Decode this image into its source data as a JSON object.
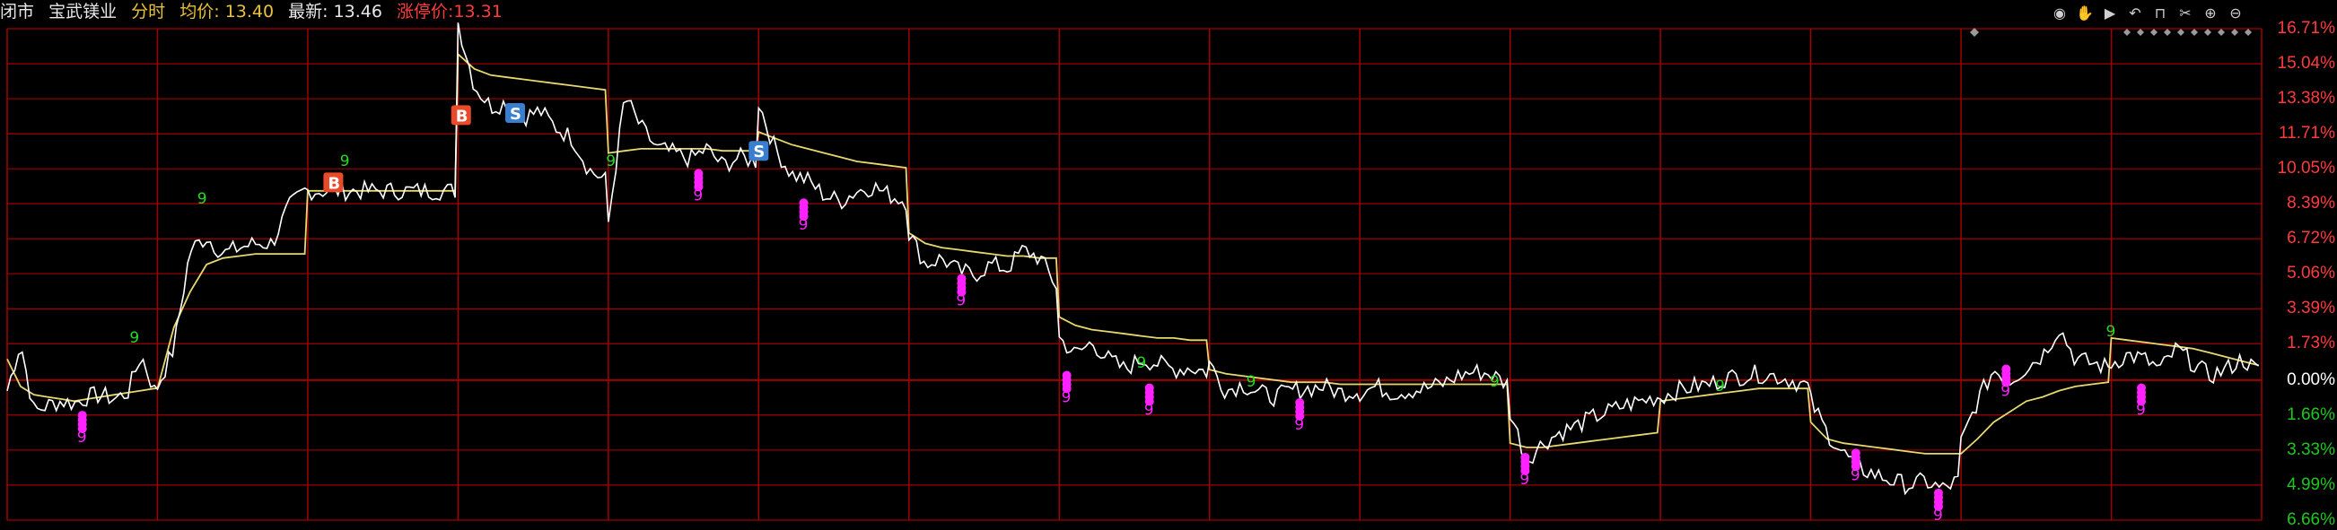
{
  "header": {
    "status": "闭市",
    "stock_name": "宝武镁业",
    "mode": "分时",
    "avg_label": "均价:",
    "avg_value": "13.40",
    "last_label": "最新:",
    "last_value": "13.46",
    "limit_label": "涨停价:",
    "limit_value": "13.31"
  },
  "toolbar": {
    "icons": [
      "eye-icon",
      "hand-icon",
      "play-icon",
      "undo-icon",
      "lock-icon",
      "scissors-icon",
      "zoom-in-icon",
      "zoom-out-icon"
    ]
  },
  "colors": {
    "background": "#000000",
    "grid": "#a00000",
    "price_line": "#ffffff",
    "avg_line": "#e8d870",
    "up": "#ff3b3b",
    "down": "#1ec81e",
    "neutral": "#ffffff",
    "marker_magenta": "#ff22ff",
    "marker_green": "#22dd22",
    "buy_marker": "#e84a2a",
    "sell_marker": "#3a7fcf"
  },
  "chart_data": {
    "type": "line",
    "ylim": [
      -6.66,
      16.71
    ],
    "y_unit": "%",
    "baseline": 0,
    "y_ticks": [
      {
        "value": 16.71,
        "label": "16.71%"
      },
      {
        "value": 15.04,
        "label": "15.04%"
      },
      {
        "value": 13.38,
        "label": "13.38%"
      },
      {
        "value": 11.71,
        "label": "11.71%"
      },
      {
        "value": 10.05,
        "label": "10.05%"
      },
      {
        "value": 8.39,
        "label": "8.39%"
      },
      {
        "value": 6.72,
        "label": "6.72%"
      },
      {
        "value": 5.06,
        "label": "5.06%"
      },
      {
        "value": 3.39,
        "label": "3.39%"
      },
      {
        "value": 1.73,
        "label": "1.73%"
      },
      {
        "value": 0.0,
        "label": "0.00%"
      },
      {
        "value": -1.66,
        "label": "1.66%"
      },
      {
        "value": -3.33,
        "label": "3.33%"
      },
      {
        "value": -4.99,
        "label": "4.99%"
      },
      {
        "value": -6.66,
        "label": "6.66%"
      }
    ],
    "sessions": 15,
    "price_series": [
      [
        -0.5,
        1.8,
        -1.5,
        -1.2,
        -1.0,
        -1.1,
        -0.8,
        -0.7,
        -0.9,
        -0.6,
        1.2,
        -0.5
      ],
      [
        -0.3,
        1.5,
        6.2,
        6.8,
        6.0,
        6.3,
        6.5,
        6.5,
        8.2,
        9.0
      ],
      [
        9.0,
        9.0,
        9.0,
        9.0,
        9.0,
        9.0,
        9.0,
        9.0,
        9.0,
        9.0
      ],
      [
        17.0,
        14.0,
        13.0,
        13.2,
        12.5,
        12.8,
        12.0,
        11.5,
        10.0,
        9.5
      ],
      [
        7.5,
        13.5,
        12.0,
        11.0,
        10.8,
        10.5,
        11.0,
        10.2,
        10.6,
        10.4
      ],
      [
        13.2,
        11.0,
        9.8,
        9.5,
        8.8,
        8.5,
        9.0,
        9.2,
        8.8,
        8.5
      ],
      [
        7.0,
        5.5,
        5.8,
        5.2,
        5.0,
        5.5,
        5.3,
        6.2,
        5.8,
        4.5
      ],
      [
        2.0,
        1.2,
        1.8,
        1.0,
        0.5,
        1.0,
        0.8,
        0.5,
        0.6,
        0.4
      ],
      [
        0.8,
        -0.5,
        -0.2,
        -0.6,
        -0.8,
        -0.5,
        -0.4,
        -0.3,
        -0.6,
        -0.5
      ],
      [
        -0.6,
        -0.3,
        -0.6,
        -0.5,
        -0.4,
        -0.2,
        0.2,
        0.4,
        0.3,
        -0.2
      ],
      [
        -1.5,
        -3.8,
        -3.0,
        -2.5,
        -2.2,
        -1.8,
        -1.5,
        -1.2,
        -1.0,
        -0.8
      ],
      [
        -0.8,
        -0.5,
        -0.3,
        -0.2,
        0.1,
        0.2,
        0.3,
        0.2,
        0.0,
        -0.3
      ],
      [
        -1.0,
        -2.5,
        -3.5,
        -4.2,
        -4.5,
        -4.8,
        -5.0,
        -4.8,
        -5.2,
        -4.8
      ],
      [
        -3.0,
        -1.0,
        0.5,
        0.0,
        0.6,
        1.2,
        2.5,
        1.0,
        0.8,
        0.6
      ],
      [
        0.8,
        1.2,
        1.0,
        0.5,
        1.5,
        0.8,
        0.2,
        0.5,
        1.0,
        0.4
      ]
    ],
    "avg_series": [
      [
        1.0,
        -0.3,
        -0.7,
        -0.8,
        -0.9,
        -1.0,
        -0.9,
        -0.8,
        -0.7,
        -0.6,
        -0.5,
        -0.4
      ],
      [
        -0.4,
        2.5,
        4.2,
        5.5,
        5.8,
        5.9,
        6.0,
        6.0,
        6.0,
        6.0
      ],
      [
        9.0,
        9.0,
        9.0,
        9.0,
        9.0,
        9.0,
        9.0,
        9.0,
        9.0,
        9.0
      ],
      [
        15.5,
        14.8,
        14.5,
        14.4,
        14.3,
        14.2,
        14.1,
        14.0,
        13.9,
        13.8
      ],
      [
        10.8,
        10.9,
        11.0,
        11.0,
        11.0,
        11.0,
        11.0,
        10.9,
        10.9,
        10.9
      ],
      [
        11.8,
        11.5,
        11.2,
        11.0,
        10.8,
        10.6,
        10.4,
        10.3,
        10.2,
        10.1
      ],
      [
        7.0,
        6.5,
        6.3,
        6.2,
        6.1,
        6.0,
        5.9,
        5.9,
        5.8,
        5.8
      ],
      [
        3.0,
        2.6,
        2.4,
        2.3,
        2.2,
        2.1,
        2.0,
        2.0,
        1.9,
        1.9
      ],
      [
        0.5,
        0.3,
        0.2,
        0.1,
        0.0,
        -0.1,
        -0.1,
        -0.1,
        -0.2,
        -0.2
      ],
      [
        -0.2,
        -0.2,
        -0.2,
        -0.2,
        -0.2,
        -0.2,
        -0.2,
        -0.2,
        -0.2,
        -0.2
      ],
      [
        -3.0,
        -3.2,
        -3.2,
        -3.1,
        -3.0,
        -2.9,
        -2.8,
        -2.7,
        -2.6,
        -2.5
      ],
      [
        -1.0,
        -0.9,
        -0.8,
        -0.7,
        -0.6,
        -0.5,
        -0.4,
        -0.4,
        -0.4,
        -0.4
      ],
      [
        -2.0,
        -2.8,
        -3.0,
        -3.1,
        -3.2,
        -3.3,
        -3.4,
        -3.5,
        -3.5,
        -3.5
      ],
      [
        -3.5,
        -2.8,
        -2.0,
        -1.5,
        -1.0,
        -0.8,
        -0.5,
        -0.3,
        -0.2,
        -0.1
      ],
      [
        2.0,
        1.9,
        1.8,
        1.7,
        1.6,
        1.5,
        1.3,
        1.1,
        0.9,
        0.7
      ]
    ],
    "signals": [
      {
        "type": "B",
        "session": 3,
        "pos": 0.02,
        "value": 12.6
      },
      {
        "type": "B",
        "session": 2,
        "pos": 0.17,
        "value": 9.4
      },
      {
        "type": "S",
        "session": 3,
        "pos": 0.38,
        "value": 12.7
      },
      {
        "type": "S",
        "session": 5,
        "pos": 0.0,
        "value": 10.9
      }
    ],
    "nine_markers": [
      {
        "label": "9",
        "color": "green",
        "session": 0,
        "pos": 0.85,
        "value": 2.0
      },
      {
        "label": "9",
        "color": "green",
        "session": 1,
        "pos": 0.3,
        "value": 8.6
      },
      {
        "label": "9",
        "color": "green",
        "session": 2,
        "pos": 0.25,
        "value": 10.4
      },
      {
        "label": "9",
        "color": "green",
        "session": 4,
        "pos": 0.02,
        "value": 10.4
      },
      {
        "label": "9",
        "color": "green",
        "session": 7,
        "pos": 0.55,
        "value": 0.8
      },
      {
        "label": "9",
        "color": "green",
        "session": 8,
        "pos": 0.28,
        "value": -0.1
      },
      {
        "label": "9",
        "color": "green",
        "session": 9,
        "pos": 0.9,
        "value": -0.1
      },
      {
        "label": "9",
        "color": "green",
        "session": 11,
        "pos": 0.4,
        "value": -0.3
      },
      {
        "label": "9",
        "color": "green",
        "session": 14,
        "pos": 0.0,
        "value": 2.3
      },
      {
        "label": "9",
        "color": "magenta",
        "session": 0,
        "pos": 0.5,
        "value": -2.1
      },
      {
        "label": "9",
        "color": "magenta",
        "session": 4,
        "pos": 0.6,
        "value": 9.4
      },
      {
        "label": "9",
        "color": "magenta",
        "session": 5,
        "pos": 0.3,
        "value": 8.0
      },
      {
        "label": "9",
        "color": "magenta",
        "session": 6,
        "pos": 0.35,
        "value": 4.4
      },
      {
        "label": "9",
        "color": "magenta",
        "session": 7,
        "pos": 0.05,
        "value": -0.2
      },
      {
        "label": "9",
        "color": "magenta",
        "session": 7,
        "pos": 0.6,
        "value": -0.8
      },
      {
        "label": "9",
        "color": "magenta",
        "session": 8,
        "pos": 0.6,
        "value": -1.5
      },
      {
        "label": "9",
        "color": "magenta",
        "session": 10,
        "pos": 0.1,
        "value": -4.1
      },
      {
        "label": "9",
        "color": "magenta",
        "session": 12,
        "pos": 0.3,
        "value": -3.9
      },
      {
        "label": "9",
        "color": "magenta",
        "session": 12,
        "pos": 0.85,
        "value": -5.8
      },
      {
        "label": "9",
        "color": "magenta",
        "session": 13,
        "pos": 0.3,
        "value": 0.1
      },
      {
        "label": "9",
        "color": "magenta",
        "session": 14,
        "pos": 0.2,
        "value": -0.8
      }
    ]
  }
}
